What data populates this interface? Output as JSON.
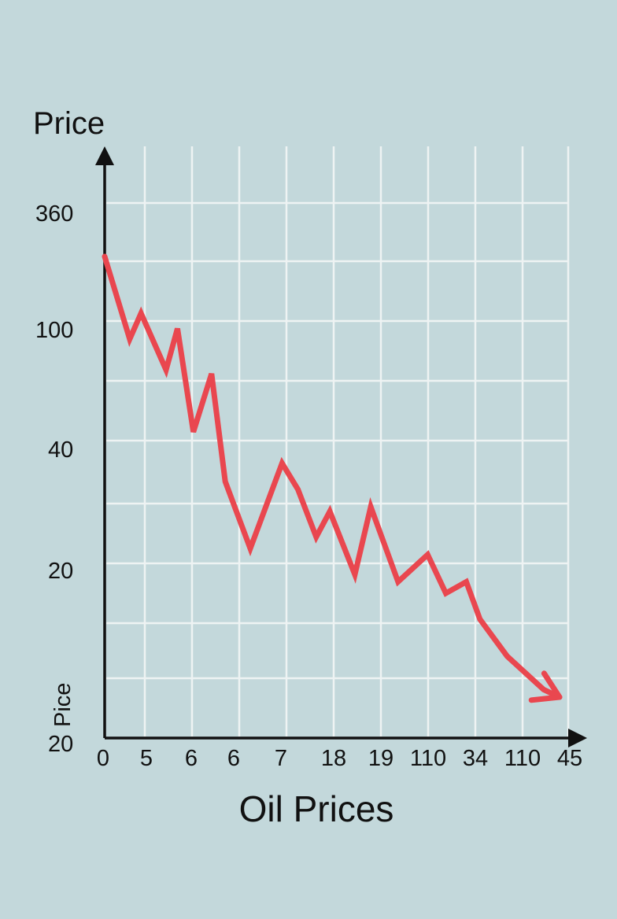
{
  "chart_data": {
    "type": "line",
    "title": "",
    "xlabel": "Oil Prices",
    "ylabel": "Price",
    "y_side_note": "Pice",
    "x_ticks": [
      "0",
      "5",
      "6",
      "6",
      "7",
      "18",
      "19",
      "110",
      "34",
      "110",
      "45"
    ],
    "y_ticks": [
      "20",
      "20",
      "40",
      "100",
      "360"
    ],
    "grid": true,
    "legend": "none",
    "line_color": "#e9474f",
    "axis_color": "#111111",
    "grid_color": "#eef3f3",
    "series": [
      {
        "x": [
          0,
          0.55,
          0.8,
          1.35,
          1.6,
          1.95,
          2.35,
          2.65,
          3.2,
          3.9,
          4.25,
          4.65,
          4.95,
          5.5,
          5.85,
          6.45,
          7.1,
          7.5,
          7.95,
          8.25,
          8.85,
          9.65,
          10.0
        ],
        "y": [
          170,
          100,
          118,
          82,
          107,
          55,
          80,
          40,
          26,
          45,
          38,
          28,
          33,
          22,
          34,
          21,
          25,
          19.5,
          21,
          16.5,
          13,
          10.5,
          10
        ]
      }
    ]
  }
}
